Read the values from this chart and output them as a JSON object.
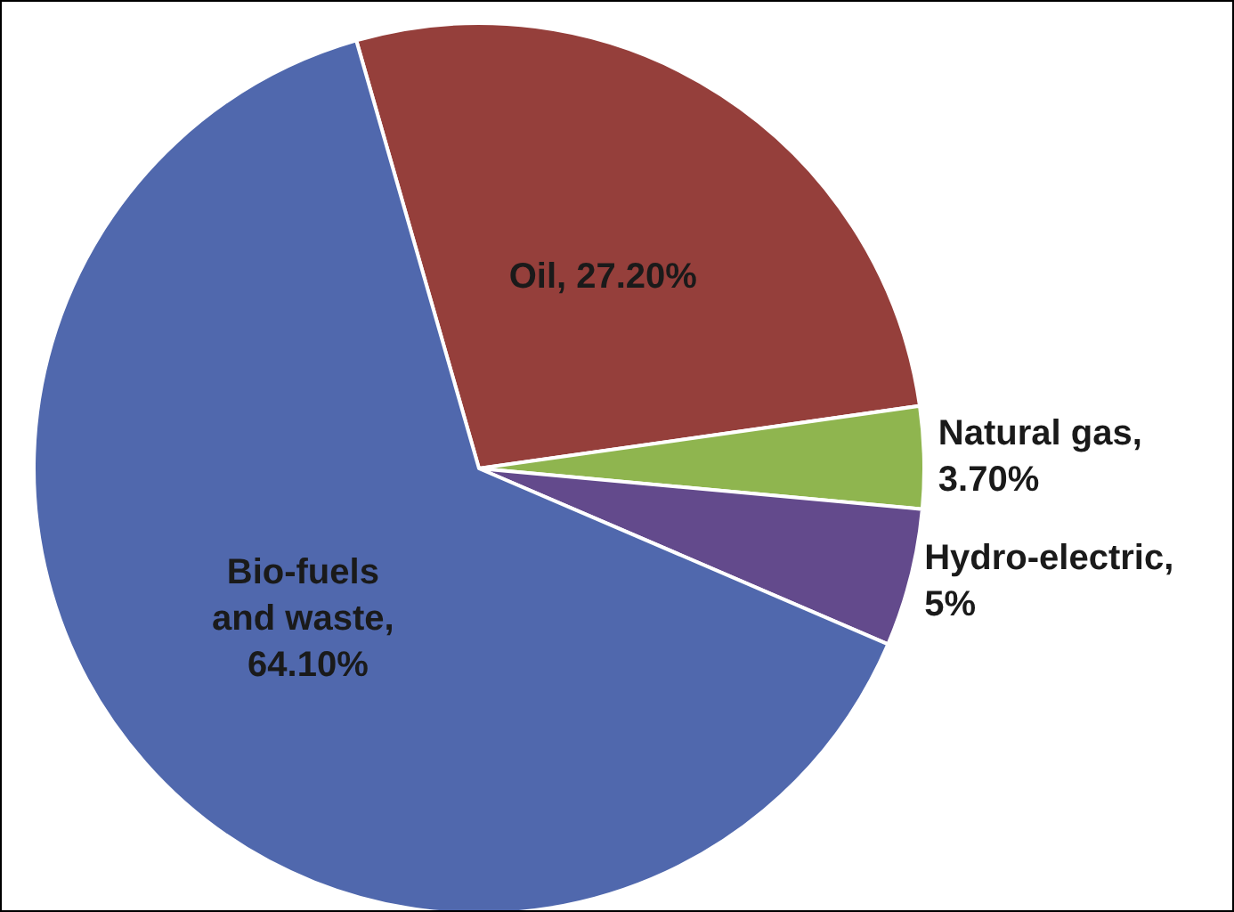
{
  "chart_data": {
    "type": "pie",
    "categories": [
      "Oil, 27.20%",
      "Natural gas, 3.70%",
      "Hydro-electric, 5%",
      "Bio-fuels and waste, 64.10%"
    ],
    "values": [
      27.2,
      3.7,
      5,
      64.1
    ],
    "colors": [
      "#953f3b",
      "#8fb54f",
      "#634a8c",
      "#5068ad"
    ],
    "legend": false
  }
}
